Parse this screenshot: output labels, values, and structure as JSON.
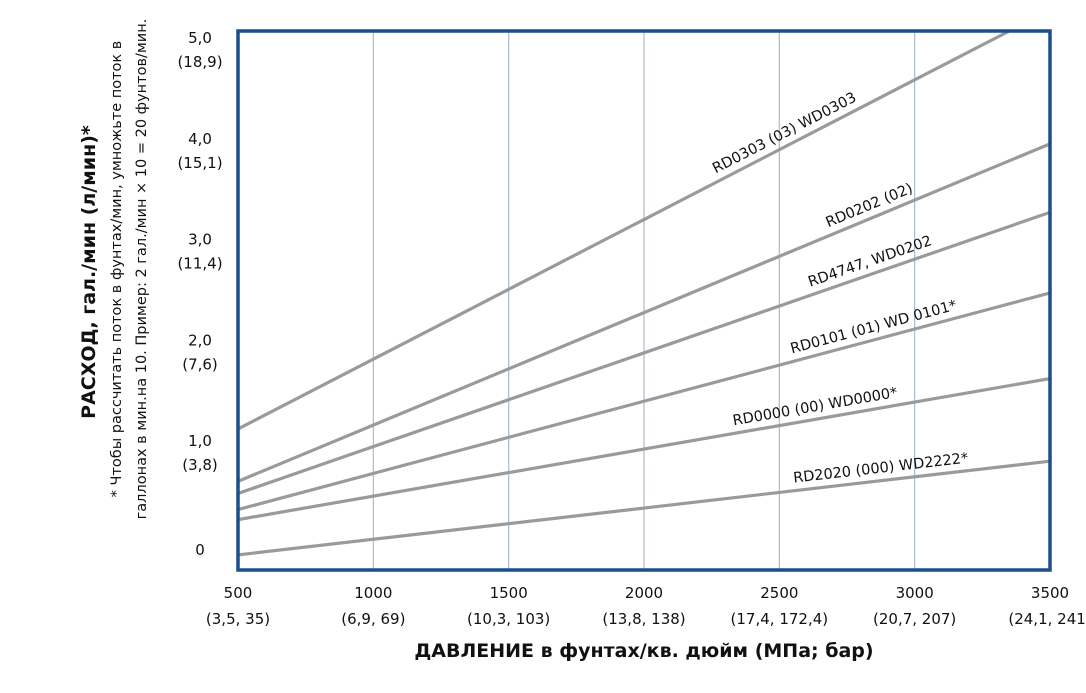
{
  "chart_data": {
    "type": "line",
    "ylabel": "РАСХОД, гал./мин (л/мин)*",
    "xlabel": "ДАВЛЕНИЕ в фунтах/кв. дюйм (МПа; бар)",
    "footnote_line1": "* Чтобы рассчитать поток в фунтах/мин, умножьте поток в",
    "footnote_line2": "галлонах в мин.на 10. Пример: 2 гал./мин × 10 = 20 фунтов/мин.",
    "xlim": [
      500,
      3500
    ],
    "ylim": [
      -0.2,
      5.15
    ],
    "grid": true,
    "x_ticks": [
      {
        "value": 500,
        "label": "500",
        "sub": "(3,5, 35)"
      },
      {
        "value": 1000,
        "label": "1000",
        "sub": "(6,9, 69)"
      },
      {
        "value": 1500,
        "label": "1500",
        "sub": "(10,3, 103)"
      },
      {
        "value": 2000,
        "label": "2000",
        "sub": "(13,8, 138)"
      },
      {
        "value": 2500,
        "label": "2500",
        "sub": "(17,4, 172,4)"
      },
      {
        "value": 3000,
        "label": "3000",
        "sub": "(20,7, 207)"
      },
      {
        "value": 3500,
        "label": "3500",
        "sub": "(24,1, 241)"
      }
    ],
    "y_ticks": [
      {
        "value": 0,
        "label": "0",
        "sub": ""
      },
      {
        "value": 1,
        "label": "1,0",
        "sub": "(3,8)"
      },
      {
        "value": 2,
        "label": "2,0",
        "sub": "(7,6)"
      },
      {
        "value": 3,
        "label": "3,0",
        "sub": "(11,4)"
      },
      {
        "value": 4,
        "label": "4,0",
        "sub": "(15,1)"
      },
      {
        "value": 5,
        "label": "5,0",
        "sub": "(18,9)"
      }
    ],
    "series": [
      {
        "name": "RD0303 (03) WD0303",
        "x": [
          500,
          3350
        ],
        "y": [
          1.2,
          5.15
        ],
        "label_at": 2540
      },
      {
        "name": "RD0202 (02)",
        "x": [
          500,
          3500
        ],
        "y": [
          0.68,
          4.03
        ],
        "label_at": 2850
      },
      {
        "name": "RD4747, WD0202",
        "x": [
          500,
          3500
        ],
        "y": [
          0.56,
          3.35
        ],
        "label_at": 2850
      },
      {
        "name": "RD0101 (01) WD 0101*",
        "x": [
          500,
          3500
        ],
        "y": [
          0.4,
          2.55
        ],
        "label_at": 2860
      },
      {
        "name": "RD0000 (00) WD0000*",
        "x": [
          500,
          3500
        ],
        "y": [
          0.3,
          1.7
        ],
        "label_at": 2640
      },
      {
        "name": "RD2020 (000) WD2222*",
        "x": [
          500,
          3500
        ],
        "y": [
          -0.05,
          0.88
        ],
        "label_at": 2880
      }
    ],
    "colors": {
      "frame": "#1a4f8a",
      "grid": "#a9bccf",
      "line": "#9a9a9a",
      "text": "#111111"
    }
  }
}
